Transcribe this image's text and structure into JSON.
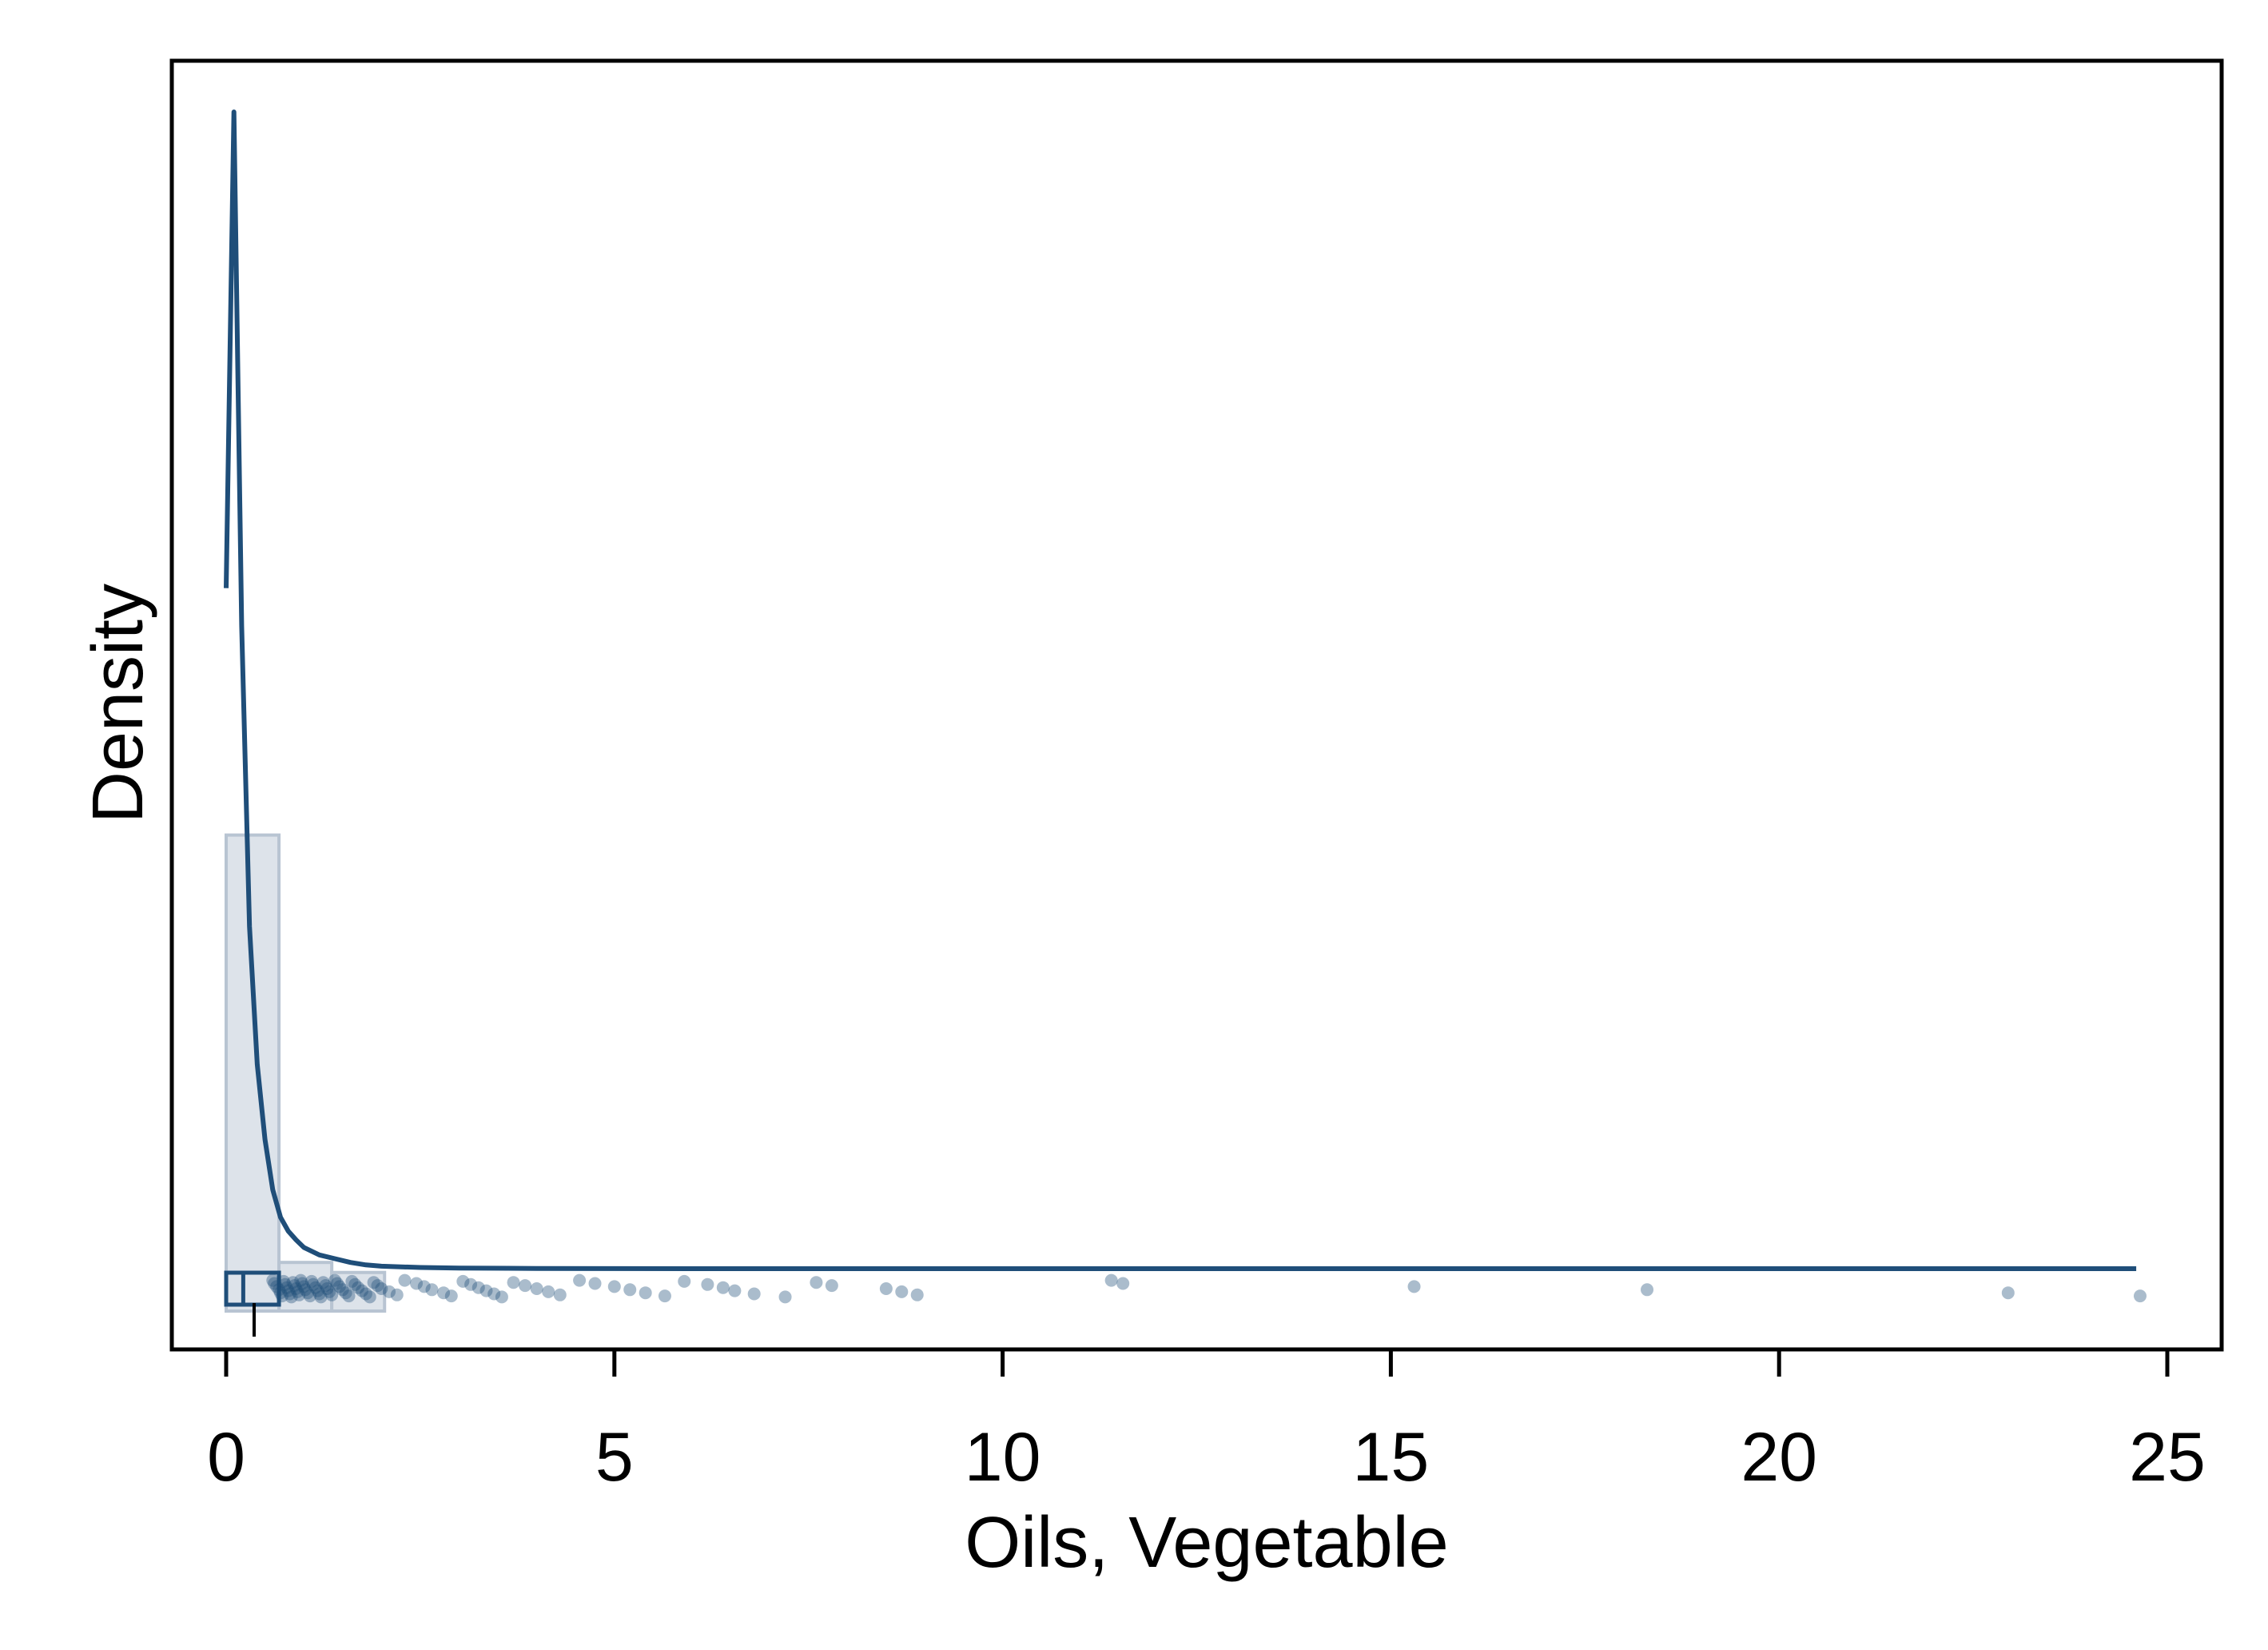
{
  "chart_data": {
    "type": "area",
    "title": "",
    "xlabel": "Oils, Vegetable",
    "ylabel": "Density",
    "xlim": [
      -0.7,
      25.7
    ],
    "x_ticks": [
      0,
      5,
      10,
      15,
      20,
      25
    ],
    "x_tick_labels": [
      "0",
      "5",
      "10",
      "15",
      "20",
      "25"
    ],
    "y_ticks_shown": false,
    "grid": false,
    "legend": "none",
    "colors": {
      "line": "#1f4e79",
      "histogram_fill": "#dde3ea",
      "histogram_edge": "#b8c4d2",
      "points": "#1f4e79",
      "frame": "#000000"
    },
    "histogram": {
      "bins": [
        {
          "x0": 0.0,
          "x1": 0.68,
          "density": 0.353
        },
        {
          "x0": 0.68,
          "x1": 1.36,
          "density": 0.012
        },
        {
          "x0": 1.36,
          "x1": 2.04,
          "density": 0.004
        }
      ]
    },
    "density_curve": {
      "x": [
        0.0,
        0.1,
        0.2,
        0.3,
        0.4,
        0.5,
        0.6,
        0.7,
        0.8,
        0.9,
        1.0,
        1.2,
        1.4,
        1.6,
        1.8,
        2.0,
        2.5,
        3.0,
        4.0,
        5.0,
        6.0,
        8.0,
        10.0,
        12.0,
        15.0,
        18.0,
        21.0,
        24.6
      ],
      "y": [
        0.55,
        0.93,
        0.52,
        0.28,
        0.17,
        0.11,
        0.07,
        0.048,
        0.037,
        0.03,
        0.024,
        0.018,
        0.015,
        0.012,
        0.01,
        0.009,
        0.008,
        0.0075,
        0.0072,
        0.0071,
        0.007,
        0.007,
        0.007,
        0.007,
        0.007,
        0.007,
        0.007,
        0.007
      ]
    },
    "box": {
      "q1": 0.0,
      "median": 0.22,
      "q3": 0.68,
      "whisker_low": 0.0,
      "whisker_high": 0.68
    },
    "mean": 0.36,
    "points": [
      0.6,
      0.62,
      0.65,
      0.68,
      0.7,
      0.72,
      0.74,
      0.76,
      0.78,
      0.8,
      0.82,
      0.84,
      0.86,
      0.88,
      0.9,
      0.92,
      0.94,
      0.96,
      0.98,
      1.0,
      1.02,
      1.05,
      1.08,
      1.1,
      1.12,
      1.15,
      1.18,
      1.2,
      1.22,
      1.25,
      1.28,
      1.3,
      1.33,
      1.36,
      1.4,
      1.43,
      1.46,
      1.5,
      1.54,
      1.58,
      1.62,
      1.66,
      1.7,
      1.75,
      1.8,
      1.85,
      1.9,
      1.95,
      2.0,
      2.1,
      2.2,
      2.3,
      2.45,
      2.55,
      2.65,
      2.8,
      2.9,
      3.05,
      3.15,
      3.25,
      3.35,
      3.45,
      3.55,
      3.7,
      3.85,
      4.0,
      4.15,
      4.3,
      4.55,
      4.75,
      5.0,
      5.2,
      5.4,
      5.65,
      5.9,
      6.2,
      6.4,
      6.55,
      6.8,
      7.2,
      7.6,
      7.8,
      8.5,
      8.7,
      8.9,
      11.4,
      11.55,
      15.3,
      18.3,
      22.95,
      24.65
    ]
  }
}
